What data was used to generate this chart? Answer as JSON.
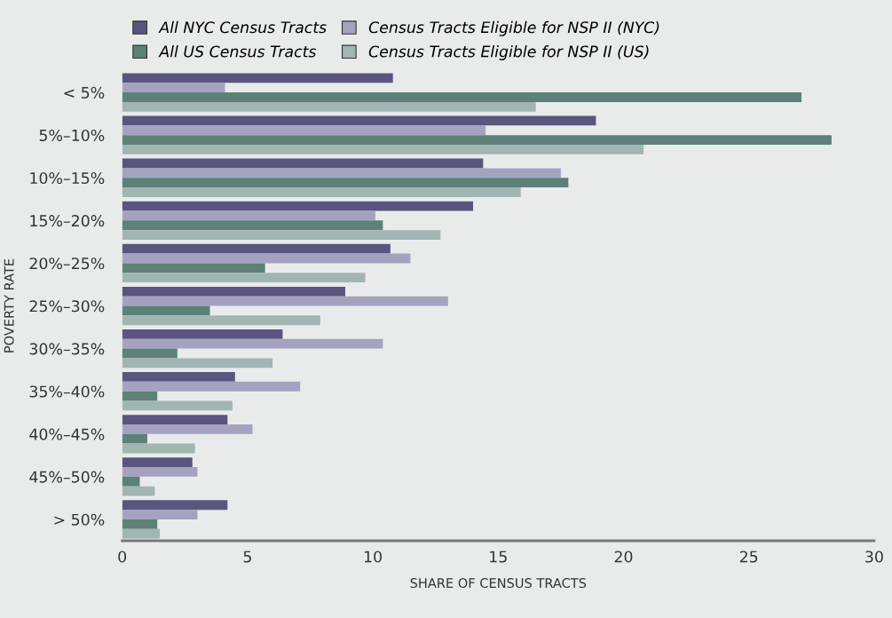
{
  "chart_data": {
    "type": "bar",
    "orientation": "horizontal",
    "xlabel": "SHARE OF CENSUS TRACTS",
    "ylabel": "POVERTY RATE",
    "categories": [
      "< 5%",
      "5%–10%",
      "10%–15%",
      "15%–20%",
      "20%–25%",
      "25%–30%",
      "30%–35%",
      "35%–40%",
      "40%–45%",
      "45%–50%",
      "> 50%"
    ],
    "series": [
      {
        "name": "All NYC Census Tracts",
        "color": "#5a557f",
        "values": [
          10.8,
          18.9,
          14.4,
          14.0,
          10.7,
          8.9,
          6.4,
          4.5,
          4.2,
          2.8,
          4.2
        ]
      },
      {
        "name": "Census Tracts Eligible for NSP II (NYC)",
        "color": "#a5a2c0",
        "values": [
          4.1,
          14.5,
          17.5,
          10.1,
          11.5,
          13.0,
          10.4,
          7.1,
          5.2,
          3.0,
          3.0
        ]
      },
      {
        "name": "All US Census Tracts",
        "color": "#5d8178",
        "values": [
          27.1,
          28.3,
          17.8,
          10.4,
          5.7,
          3.5,
          2.2,
          1.4,
          1.0,
          0.7,
          1.4
        ]
      },
      {
        "name": "Census Tracts Eligible for NSP II (US)",
        "color": "#a1b6b2",
        "values": [
          16.5,
          20.8,
          15.9,
          12.7,
          9.7,
          7.9,
          6.0,
          4.4,
          2.9,
          1.3,
          1.5
        ]
      }
    ],
    "xlim": [
      0,
      30
    ],
    "xticks": [
      0,
      5,
      10,
      15,
      20,
      25,
      30
    ],
    "grid": false,
    "legend": "top"
  }
}
